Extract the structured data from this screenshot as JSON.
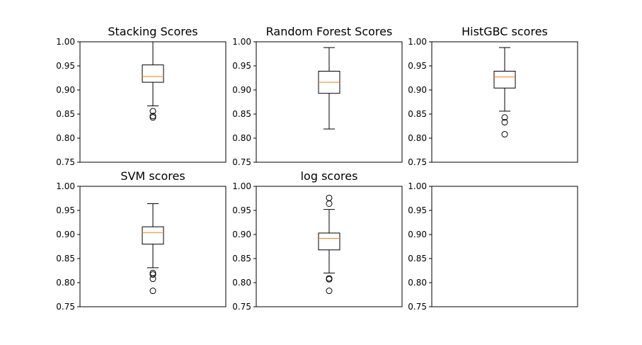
{
  "chart_data": [
    {
      "type": "box",
      "title": "Stacking Scores",
      "ylim": [
        0.75,
        1.0
      ],
      "yticks": [
        "0.75",
        "0.80",
        "0.85",
        "0.90",
        "0.95",
        "1.00"
      ],
      "box": {
        "whisker_low": 0.867,
        "q1": 0.916,
        "median": 0.928,
        "q3": 0.952,
        "whisker_high": 1.0
      },
      "outliers": [
        0.856,
        0.846,
        0.843
      ]
    },
    {
      "type": "box",
      "title": "Random Forest Scores",
      "ylim": [
        0.75,
        1.0
      ],
      "yticks": [
        "0.75",
        "0.80",
        "0.85",
        "0.90",
        "0.95",
        "1.00"
      ],
      "box": {
        "whisker_low": 0.819,
        "q1": 0.893,
        "median": 0.916,
        "q3": 0.939,
        "whisker_high": 0.988
      },
      "outliers": []
    },
    {
      "type": "box",
      "title": "HistGBC scores",
      "ylim": [
        0.75,
        1.0
      ],
      "yticks": [
        "0.75",
        "0.80",
        "0.85",
        "0.90",
        "0.95",
        "1.00"
      ],
      "box": {
        "whisker_low": 0.856,
        "q1": 0.904,
        "median": 0.927,
        "q3": 0.939,
        "whisker_high": 0.988
      },
      "outliers": [
        0.843,
        0.833,
        0.808
      ]
    },
    {
      "type": "box",
      "title": "SVM scores",
      "ylim": [
        0.75,
        1.0
      ],
      "yticks": [
        "0.75",
        "0.80",
        "0.85",
        "0.90",
        "0.95",
        "1.00"
      ],
      "box": {
        "whisker_low": 0.831,
        "q1": 0.88,
        "median": 0.904,
        "q3": 0.916,
        "whisker_high": 0.964
      },
      "outliers": [
        0.82,
        0.817,
        0.808,
        0.783
      ]
    },
    {
      "type": "box",
      "title": "log scores",
      "ylim": [
        0.75,
        1.0
      ],
      "yticks": [
        "0.75",
        "0.80",
        "0.85",
        "0.90",
        "0.95",
        "1.00"
      ],
      "box": {
        "whisker_low": 0.82,
        "q1": 0.868,
        "median": 0.892,
        "q3": 0.903,
        "whisker_high": 0.952
      },
      "outliers": [
        0.976,
        0.964,
        0.809,
        0.807,
        0.783
      ]
    },
    {
      "type": "box",
      "title": "",
      "ylim": [
        0.75,
        1.0
      ],
      "yticks": [
        "0.75",
        "0.80",
        "0.85",
        "0.90",
        "0.95",
        "1.00"
      ],
      "box": null,
      "outliers": []
    }
  ],
  "colors": {
    "box": "#000000",
    "median": "#ff7f0e",
    "outlier": "#000000",
    "background": "#ffffff"
  }
}
